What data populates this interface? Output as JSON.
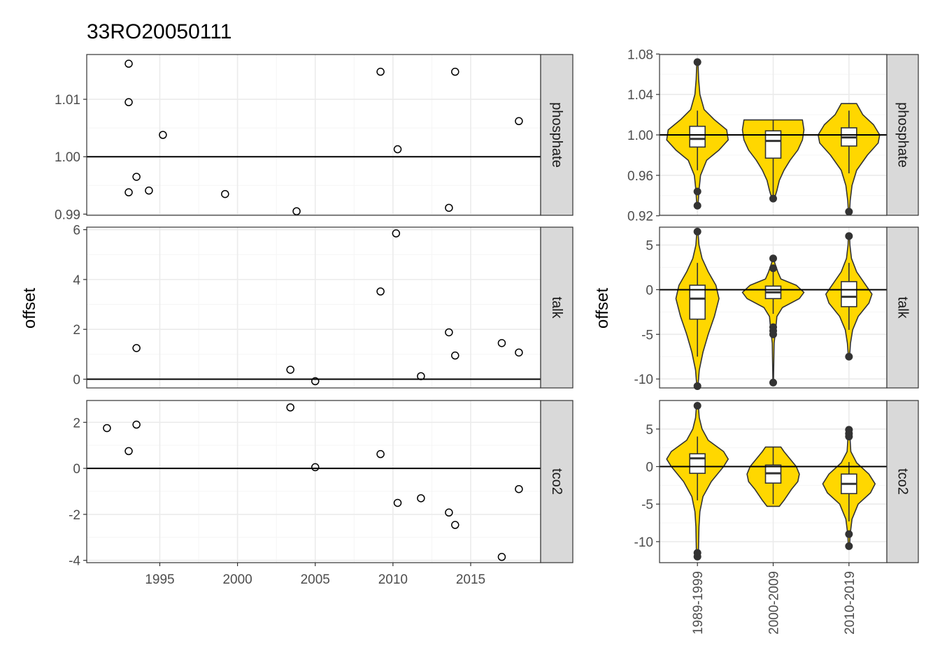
{
  "title": "33RO20050111",
  "colors": {
    "violin_fill": "#FFD700",
    "outline": "#333333",
    "strip_bg": "#D9D9D9",
    "grid_major": "#EBEBEB",
    "grid_minor": "#F5F5F5"
  },
  "chart_data": [
    {
      "type": "scatter",
      "ylabel": "offset",
      "xlim": [
        1990.3,
        2019.5
      ],
      "x_ticks": [
        1995,
        2000,
        2005,
        2010,
        2015
      ],
      "x_tick_labels": [
        "1995",
        "2000",
        "2005",
        "2010",
        "2015"
      ],
      "reference_line": {
        "phosphate": 1,
        "talk": 0,
        "tco2": 0
      },
      "panels": [
        {
          "label": "phosphate",
          "ylim": [
            0.9898,
            1.0178
          ],
          "y_ticks": [
            0.99,
            1.0,
            1.01
          ],
          "y_tick_labels": [
            "0.99",
            "1.00",
            "1.01"
          ],
          "points": [
            {
              "x": 1993.0,
              "y": 1.0162
            },
            {
              "x": 1993.0,
              "y": 1.0095
            },
            {
              "x": 1995.2,
              "y": 1.0038
            },
            {
              "x": 1993.5,
              "y": 0.9965
            },
            {
              "x": 1993.0,
              "y": 0.9938
            },
            {
              "x": 1994.3,
              "y": 0.9941
            },
            {
              "x": 1999.2,
              "y": 0.9935
            },
            {
              "x": 2003.8,
              "y": 0.9905
            },
            {
              "x": 2009.2,
              "y": 1.0148
            },
            {
              "x": 2014.0,
              "y": 1.0148
            },
            {
              "x": 2010.3,
              "y": 1.0013
            },
            {
              "x": 2013.6,
              "y": 0.9911
            },
            {
              "x": 2018.1,
              "y": 1.0062
            }
          ]
        },
        {
          "label": "talk",
          "ylim": [
            -0.35,
            6.1
          ],
          "y_ticks": [
            0,
            2,
            4,
            6
          ],
          "y_tick_labels": [
            "0",
            "2",
            "4",
            "6"
          ],
          "points": [
            {
              "x": 1993.5,
              "y": 1.25
            },
            {
              "x": 2003.4,
              "y": 0.38
            },
            {
              "x": 2005.0,
              "y": -0.08
            },
            {
              "x": 2009.2,
              "y": 3.52
            },
            {
              "x": 2010.2,
              "y": 5.85
            },
            {
              "x": 2011.8,
              "y": 0.12
            },
            {
              "x": 2013.6,
              "y": 1.88
            },
            {
              "x": 2014.0,
              "y": 0.95
            },
            {
              "x": 2017.0,
              "y": 1.45
            },
            {
              "x": 2018.1,
              "y": 1.07
            }
          ]
        },
        {
          "label": "tco2",
          "ylim": [
            -4.1,
            2.95
          ],
          "y_ticks": [
            -4,
            -2,
            0,
            2
          ],
          "y_tick_labels": [
            "-4",
            "-2",
            "0",
            "2"
          ],
          "points": [
            {
              "x": 1991.6,
              "y": 1.75
            },
            {
              "x": 1993.0,
              "y": 0.75
            },
            {
              "x": 1993.5,
              "y": 1.9
            },
            {
              "x": 2003.4,
              "y": 2.65
            },
            {
              "x": 2005.0,
              "y": 0.05
            },
            {
              "x": 2009.2,
              "y": 0.62
            },
            {
              "x": 2010.3,
              "y": -1.5
            },
            {
              "x": 2011.8,
              "y": -1.3
            },
            {
              "x": 2013.6,
              "y": -1.92
            },
            {
              "x": 2014.0,
              "y": -2.46
            },
            {
              "x": 2017.0,
              "y": -3.85
            },
            {
              "x": 2018.1,
              "y": -0.9
            }
          ]
        }
      ]
    },
    {
      "type": "violin",
      "ylabel": "offset",
      "categories": [
        "1989-1999",
        "2000-2009",
        "2010-2019"
      ],
      "reference_line": {
        "phosphate": 1,
        "talk": 0,
        "tco2": 0
      },
      "panels": [
        {
          "label": "phosphate",
          "ylim": [
            0.9205,
            1.0795
          ],
          "y_ticks": [
            0.92,
            0.96,
            1.0,
            1.04,
            1.08
          ],
          "y_tick_labels": [
            "0.92",
            "0.96",
            "1.00",
            "1.04",
            "1.08"
          ],
          "groups": [
            {
              "q1": 0.988,
              "median": 0.996,
              "q3": 1.0085,
              "whisker_low": 0.965,
              "whisker_high": 1.024,
              "violin_min": 0.93,
              "violin_max": 1.072,
              "outliers": [
                0.93,
                0.944,
                1.072
              ],
              "profile": [
                [
                  0.93,
                  0.02
                ],
                [
                  0.945,
                  0.05
                ],
                [
                  0.96,
                  0.1
                ],
                [
                  0.975,
                  0.3
                ],
                [
                  0.985,
                  0.7
                ],
                [
                  0.995,
                  1.0
                ],
                [
                  1.005,
                  0.95
                ],
                [
                  1.015,
                  0.55
                ],
                [
                  1.025,
                  0.22
                ],
                [
                  1.04,
                  0.08
                ],
                [
                  1.055,
                  0.04
                ],
                [
                  1.072,
                  0.02
                ]
              ]
            },
            {
              "q1": 0.977,
              "median": 0.994,
              "q3": 1.004,
              "whisker_low": 0.937,
              "whisker_high": 1.015,
              "violin_min": 0.937,
              "violin_max": 1.015,
              "outliers": [
                0.937
              ],
              "profile": [
                [
                  0.937,
                  0.04
                ],
                [
                  0.945,
                  0.12
                ],
                [
                  0.955,
                  0.2
                ],
                [
                  0.965,
                  0.35
                ],
                [
                  0.975,
                  0.55
                ],
                [
                  0.985,
                  0.8
                ],
                [
                  0.995,
                  0.95
                ],
                [
                  1.005,
                  1.0
                ],
                [
                  1.0148,
                  0.95
                ]
              ]
            },
            {
              "q1": 0.989,
              "median": 0.9975,
              "q3": 1.007,
              "whisker_low": 0.962,
              "whisker_high": 1.024,
              "violin_min": 0.924,
              "violin_max": 1.031,
              "outliers": [
                0.924
              ],
              "profile": [
                [
                  0.924,
                  0.02
                ],
                [
                  0.935,
                  0.04
                ],
                [
                  0.95,
                  0.1
                ],
                [
                  0.965,
                  0.25
                ],
                [
                  0.98,
                  0.6
                ],
                [
                  0.992,
                  0.95
                ],
                [
                  1.0,
                  1.0
                ],
                [
                  1.01,
                  0.8
                ],
                [
                  1.02,
                  0.45
                ],
                [
                  1.031,
                  0.25
                ]
              ]
            }
          ]
        },
        {
          "label": "talk",
          "ylim": [
            -11.0,
            7.0
          ],
          "y_ticks": [
            -10,
            -5,
            0,
            5
          ],
          "y_tick_labels": [
            "-10",
            "-5",
            "0",
            "5"
          ],
          "groups": [
            {
              "q1": -3.3,
              "median": -1.0,
              "q3": 0.5,
              "whisker_low": -7.5,
              "whisker_high": 3.0,
              "violin_min": -10.8,
              "violin_max": 6.5,
              "outliers": [
                -10.8,
                6.5
              ],
              "profile": [
                [
                  -10.8,
                  0.02
                ],
                [
                  -9,
                  0.06
                ],
                [
                  -7,
                  0.18
                ],
                [
                  -5,
                  0.35
                ],
                [
                  -3,
                  0.55
                ],
                [
                  -1,
                  0.7
                ],
                [
                  0.5,
                  0.6
                ],
                [
                  2,
                  0.35
                ],
                [
                  3.5,
                  0.15
                ],
                [
                  5,
                  0.05
                ],
                [
                  6.5,
                  0.02
                ]
              ]
            },
            {
              "q1": -1.0,
              "median": -0.3,
              "q3": 0.4,
              "whisker_low": -2.7,
              "whisker_high": 2.2,
              "violin_min": -10.4,
              "violin_max": 3.5,
              "outliers": [
                -10.4,
                -5.0,
                -4.6,
                -4.2,
                2.4,
                3.5
              ],
              "profile": [
                [
                  -10.4,
                  0.01
                ],
                [
                  -8,
                  0.02
                ],
                [
                  -6,
                  0.03
                ],
                [
                  -4.5,
                  0.08
                ],
                [
                  -3,
                  0.12
                ],
                [
                  -2,
                  0.3
                ],
                [
                  -1,
                  0.85
                ],
                [
                  -0.3,
                  1.0
                ],
                [
                  0.5,
                  0.75
                ],
                [
                  1.2,
                  0.25
                ],
                [
                  2,
                  0.15
                ],
                [
                  3,
                  0.05
                ],
                [
                  3.5,
                  0.02
                ]
              ]
            },
            {
              "q1": -1.9,
              "median": -0.8,
              "q3": 0.9,
              "whisker_low": -4.5,
              "whisker_high": 3.0,
              "violin_min": -7.5,
              "violin_max": 6.0,
              "outliers": [
                -7.5,
                6.0
              ],
              "profile": [
                [
                  -7.5,
                  0.02
                ],
                [
                  -6,
                  0.05
                ],
                [
                  -4.5,
                  0.12
                ],
                [
                  -3,
                  0.3
                ],
                [
                  -1.5,
                  0.65
                ],
                [
                  -0.5,
                  0.75
                ],
                [
                  0.5,
                  0.55
                ],
                [
                  2,
                  0.25
                ],
                [
                  3.5,
                  0.08
                ],
                [
                  5,
                  0.03
                ],
                [
                  6,
                  0.02
                ]
              ]
            }
          ]
        },
        {
          "label": "tco2",
          "ylim": [
            -12.8,
            8.8
          ],
          "y_ticks": [
            -10,
            -5,
            0,
            5
          ],
          "y_tick_labels": [
            "-10",
            "-5",
            "0",
            "5"
          ],
          "groups": [
            {
              "q1": -0.9,
              "median": 1.1,
              "q3": 1.7,
              "whisker_low": -4.5,
              "whisker_high": 4.0,
              "violin_min": -12.0,
              "violin_max": 8.1,
              "outliers": [
                -12.0,
                -11.5,
                8.1
              ],
              "profile": [
                [
                  -12,
                  0.03
                ],
                [
                  -10,
                  0.04
                ],
                [
                  -8,
                  0.05
                ],
                [
                  -6,
                  0.08
                ],
                [
                  -4,
                  0.18
                ],
                [
                  -2,
                  0.45
                ],
                [
                  0,
                  0.85
                ],
                [
                  1,
                  1.0
                ],
                [
                  2,
                  0.85
                ],
                [
                  3.5,
                  0.35
                ],
                [
                  5,
                  0.15
                ],
                [
                  6.5,
                  0.06
                ],
                [
                  8.1,
                  0.03
                ]
              ]
            },
            {
              "q1": -2.2,
              "median": -0.9,
              "q3": 0.2,
              "whisker_low": -5.0,
              "whisker_high": 2.6,
              "violin_min": -5.3,
              "violin_max": 2.6,
              "outliers": [],
              "profile": [
                [
                  -5.3,
                  0.2
                ],
                [
                  -4.5,
                  0.35
                ],
                [
                  -3,
                  0.6
                ],
                [
                  -2,
                  0.8
                ],
                [
                  -1,
                  0.85
                ],
                [
                  0,
                  0.75
                ],
                [
                  1,
                  0.55
                ],
                [
                  2,
                  0.35
                ],
                [
                  2.6,
                  0.25
                ]
              ]
            },
            {
              "q1": -3.6,
              "median": -2.3,
              "q3": -1.0,
              "whisker_low": -7.3,
              "whisker_high": 0.6,
              "violin_min": -10.6,
              "violin_max": 4.9,
              "outliers": [
                -10.6,
                -9.0,
                4.0,
                4.4,
                4.9
              ],
              "profile": [
                [
                  -10.6,
                  0.02
                ],
                [
                  -9,
                  0.04
                ],
                [
                  -7,
                  0.1
                ],
                [
                  -5,
                  0.3
                ],
                [
                  -3.5,
                  0.7
                ],
                [
                  -2.3,
                  0.85
                ],
                [
                  -1,
                  0.65
                ],
                [
                  0.5,
                  0.25
                ],
                [
                  2,
                  0.06
                ],
                [
                  4,
                  0.03
                ],
                [
                  4.9,
                  0.02
                ]
              ]
            }
          ]
        }
      ]
    }
  ]
}
